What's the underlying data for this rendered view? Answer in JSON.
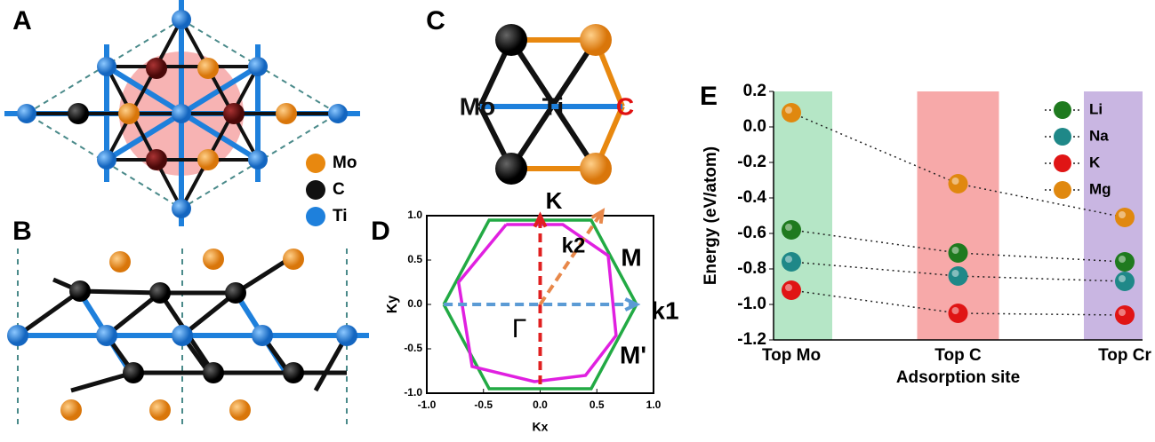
{
  "panel_labels": [
    "A",
    "B",
    "C",
    "D",
    "E"
  ],
  "legend_A": [
    {
      "label": "Mo",
      "color": "#e8880f"
    },
    {
      "label": "C",
      "color": "#111111"
    },
    {
      "label": "Ti",
      "color": "#1e80dc"
    }
  ],
  "atom_labels_C": [
    {
      "text": "Mo",
      "color": "#111111"
    },
    {
      "text": "Ti",
      "color": "#111111"
    },
    {
      "text": "C",
      "color": "#e01010"
    }
  ],
  "chart_data": [
    {
      "type": "line",
      "xlabel": "Kx",
      "ylabel": "Ky",
      "xlim": [
        -1,
        1
      ],
      "ylim": [
        -1,
        1
      ],
      "xticks": [
        {
          "value": -1,
          "label": "-1.0"
        },
        -0.5,
        {
          "value": 0,
          "label": "0.0"
        },
        0.5,
        {
          "value": 1,
          "label": "1.0"
        }
      ],
      "yticks": [
        {
          "value": -1,
          "label": "-1.0"
        },
        -0.5,
        {
          "value": 0,
          "label": "0.0"
        },
        0.5,
        {
          "value": 1,
          "label": "1.0"
        }
      ],
      "annotations": [
        "K",
        "k2",
        "M",
        "M'",
        "k1",
        "Γ"
      ],
      "series": [
        {
          "color": "#22aa44",
          "style": "solid",
          "x": [
            -0.85,
            -0.45,
            0.45,
            0.85,
            0.45,
            -0.45,
            -0.85
          ],
          "y": [
            0,
            0.95,
            0.95,
            0,
            -0.95,
            -0.95,
            0
          ]
        },
        {
          "color": "#e020e0",
          "style": "solid",
          "x": [
            -0.3,
            0.2,
            0.6,
            0.67,
            0.4,
            -0.05,
            -0.6,
            -0.72,
            -0.3
          ],
          "y": [
            0.9,
            0.9,
            0.55,
            -0.35,
            -0.8,
            -0.87,
            -0.7,
            0.25,
            0.9
          ]
        },
        {
          "color": "#e02020",
          "style": "dashed-arrow",
          "x": [
            0,
            0
          ],
          "y": [
            -0.9,
            1
          ]
        },
        {
          "color": "#5b9bd5",
          "style": "dashed-arrow",
          "x": [
            -0.85,
            0.85
          ],
          "y": [
            0,
            0
          ]
        },
        {
          "color": "#e8884a",
          "style": "dashed-arrow",
          "x": [
            0,
            0.55
          ],
          "y": [
            0,
            1.05
          ]
        }
      ]
    },
    {
      "type": "scatter",
      "xlabel": "Adsorption site",
      "ylabel": "Energy (eV/atom)",
      "categories": [
        "Top Mo",
        "Top C",
        "Top Cr"
      ],
      "band_colors": [
        "#b5e6c6",
        "#f7a9a9",
        "#c9b6e2"
      ],
      "ylim": [
        -1.2,
        0.2
      ],
      "yticks": [
        0.2,
        {
          "value": 0,
          "label": "0.0"
        },
        -0.2,
        -0.4,
        -0.6,
        -0.8,
        {
          "value": -1,
          "label": "-1.0"
        },
        -1.2
      ],
      "legend": "top-right",
      "series": [
        {
          "name": "Li",
          "color": "#1f7a1f",
          "values": [
            -0.58,
            -0.71,
            -0.76
          ]
        },
        {
          "name": "Na",
          "color": "#1f8888",
          "values": [
            -0.76,
            -0.84,
            -0.87
          ]
        },
        {
          "name": "K",
          "color": "#e01515",
          "values": [
            -0.92,
            -1.05,
            -1.06
          ]
        },
        {
          "name": "Mg",
          "color": "#e0880f",
          "values": [
            0.08,
            -0.32,
            -0.51
          ]
        }
      ]
    }
  ]
}
